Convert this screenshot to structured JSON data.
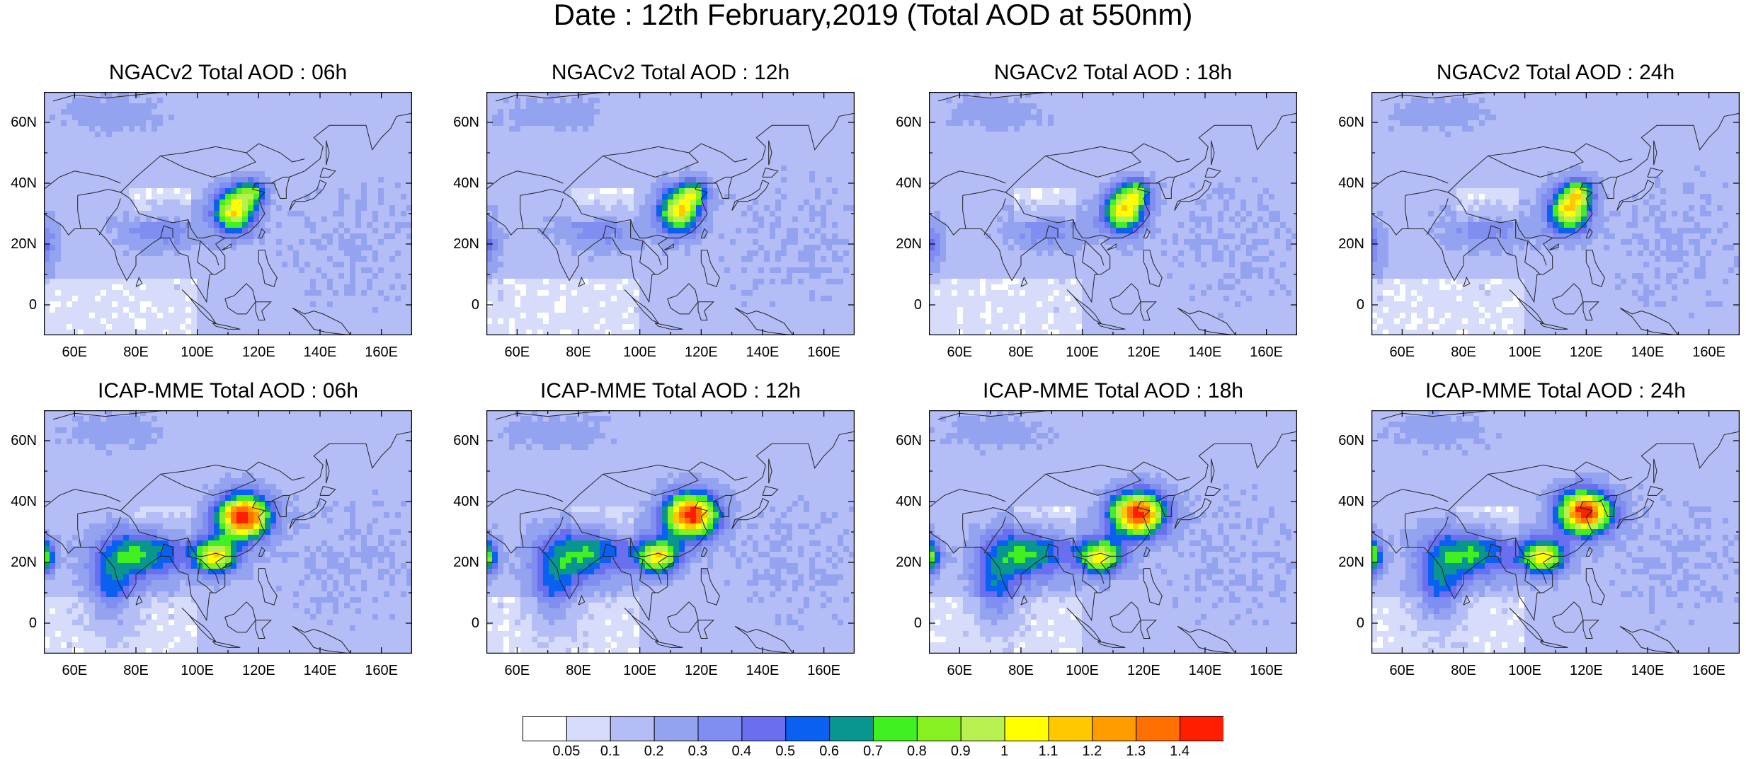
{
  "title": "Date : 12th February,2019 (Total AOD at 550nm)",
  "map": {
    "lon_range": [
      50,
      170
    ],
    "lat_range": [
      -10,
      70
    ],
    "lon_ticks": [
      "60E",
      "80E",
      "100E",
      "120E",
      "140E",
      "160E"
    ],
    "lat_ticks": [
      "0",
      "20N",
      "40N",
      "60N"
    ]
  },
  "panels": [
    {
      "title": "NGACv2 Total AOD : 06h",
      "model": "NGACv2",
      "lead": "06h"
    },
    {
      "title": "NGACv2 Total AOD : 12h",
      "model": "NGACv2",
      "lead": "12h"
    },
    {
      "title": "NGACv2 Total AOD : 18h",
      "model": "NGACv2",
      "lead": "18h"
    },
    {
      "title": "NGACv2 Total AOD : 24h",
      "model": "NGACv2",
      "lead": "24h"
    },
    {
      "title": "ICAP-MME Total AOD : 06h",
      "model": "ICAP-MME",
      "lead": "06h"
    },
    {
      "title": "ICAP-MME Total AOD : 12h",
      "model": "ICAP-MME",
      "lead": "12h"
    },
    {
      "title": "ICAP-MME Total AOD : 18h",
      "model": "ICAP-MME",
      "lead": "18h"
    },
    {
      "title": "ICAP-MME Total AOD : 24h",
      "model": "ICAP-MME",
      "lead": "24h"
    }
  ],
  "colorbar": {
    "labels": [
      "0.05",
      "0.1",
      "0.2",
      "0.3",
      "0.4",
      "0.5",
      "0.6",
      "0.7",
      "0.8",
      "0.9",
      "1",
      "1.1",
      "1.2",
      "1.3",
      "1.4"
    ],
    "colors": [
      "#ffffff",
      "#d6dcfa",
      "#b4bdf5",
      "#94a3f0",
      "#7f8ef0",
      "#6a6ff0",
      "#0a60f0",
      "#0a9690",
      "#40f020",
      "#86f020",
      "#b8f050",
      "#ffff00",
      "#ffc800",
      "#ff9c00",
      "#ff7000",
      "#ff1e00"
    ]
  }
}
